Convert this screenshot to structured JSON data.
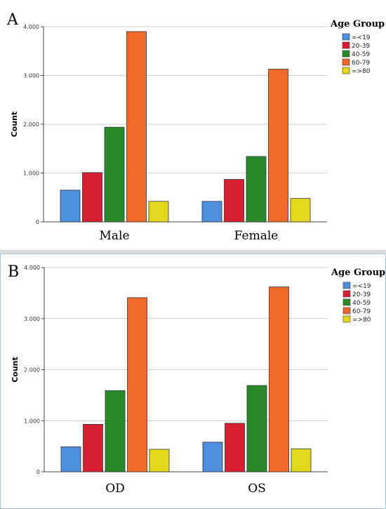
{
  "chart_data": [
    {
      "panel": "A",
      "type": "bar",
      "categories": [
        "Male",
        "Female"
      ],
      "ylabel": "Count",
      "ylim": [
        0,
        4000
      ],
      "yticks": [
        "0",
        "1.000",
        "2.000",
        "3.000",
        "4.000"
      ],
      "legend_title": "Age Group",
      "legend_position": "top-right",
      "grid": true,
      "series": [
        {
          "name": "=<19",
          "color": "#4f8fe0",
          "values": [
            650,
            420
          ]
        },
        {
          "name": "20-39",
          "color": "#d81f32",
          "values": [
            1010,
            870
          ]
        },
        {
          "name": "40-59",
          "color": "#2a8a2a",
          "values": [
            1940,
            1340
          ]
        },
        {
          "name": "60-79",
          "color": "#f26a2a",
          "values": [
            3900,
            3130
          ]
        },
        {
          "name": "=>80",
          "color": "#e3d81c",
          "values": [
            420,
            480
          ]
        }
      ]
    },
    {
      "panel": "B",
      "type": "bar",
      "categories": [
        "OD",
        "OS"
      ],
      "ylabel": "Count",
      "ylim": [
        0,
        4000
      ],
      "yticks": [
        "0",
        "1.000",
        "2.000",
        "3.000",
        "4.000"
      ],
      "legend_title": "Age Group",
      "legend_position": "top-right",
      "grid": true,
      "series": [
        {
          "name": "=<19",
          "color": "#4f8fe0",
          "values": [
            490,
            580
          ]
        },
        {
          "name": "20-39",
          "color": "#d81f32",
          "values": [
            930,
            950
          ]
        },
        {
          "name": "40-59",
          "color": "#2a8a2a",
          "values": [
            1590,
            1690
          ]
        },
        {
          "name": "60-79",
          "color": "#f26a2a",
          "values": [
            3410,
            3620
          ]
        },
        {
          "name": "=>80",
          "color": "#e3d81c",
          "values": [
            440,
            450
          ]
        }
      ]
    }
  ]
}
